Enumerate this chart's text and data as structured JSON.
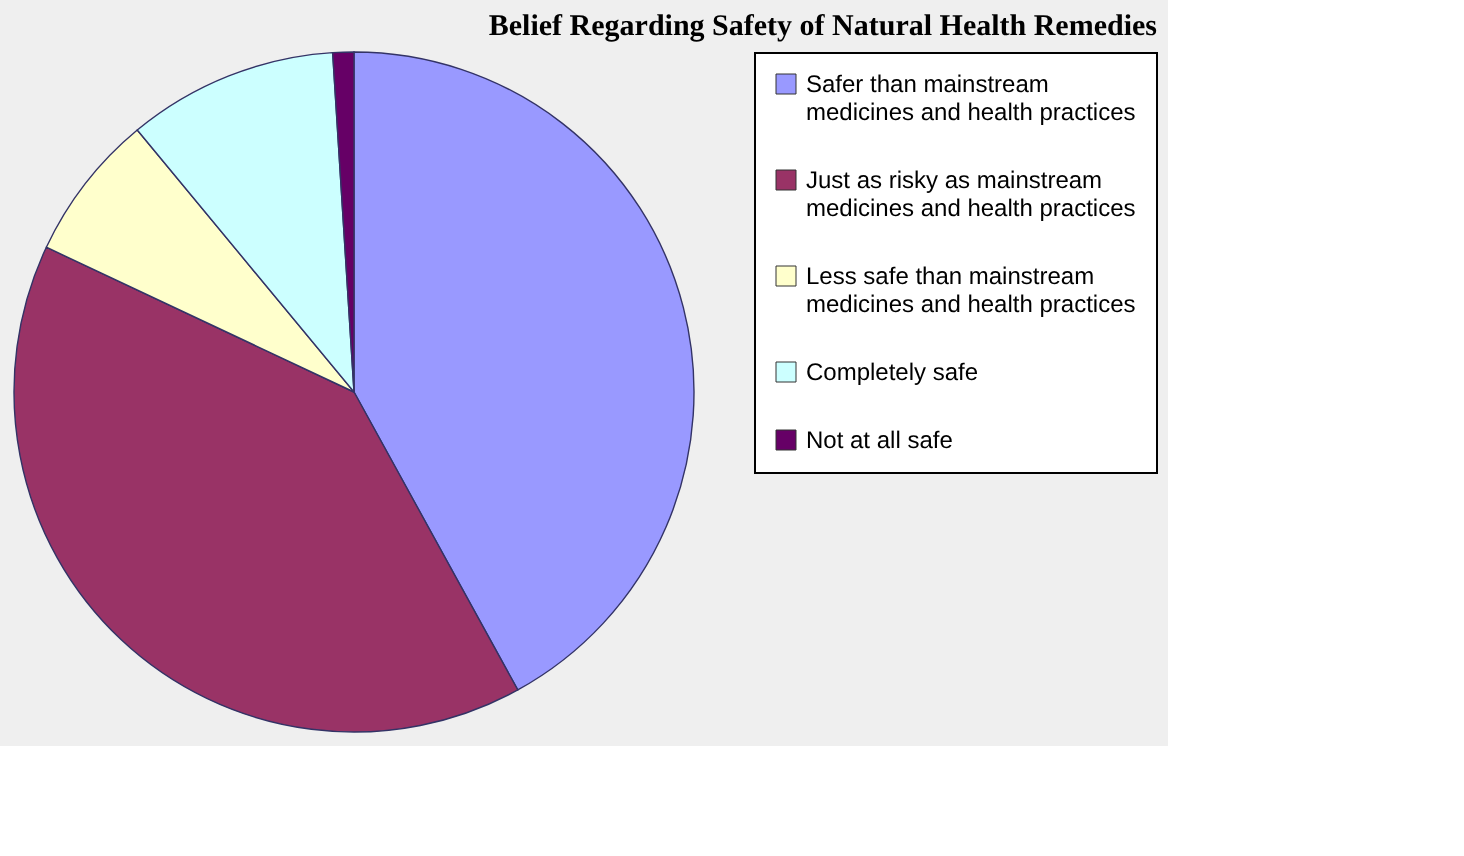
{
  "chart_data": {
    "type": "pie",
    "title": "Belief Regarding Safety of Natural Health Remedies",
    "categories": [
      "Safer than mainstream medicines and health practices",
      "Just as risky as mainstream medicines and health practices",
      "Less safe than mainstream medicines and health practices",
      "Completely safe",
      "Not at all safe"
    ],
    "values": [
      42,
      40,
      7,
      10,
      1
    ],
    "colors": [
      "#9999ff",
      "#993366",
      "#ffffcc",
      "#ccffff",
      "#660066"
    ],
    "legend": "right"
  }
}
